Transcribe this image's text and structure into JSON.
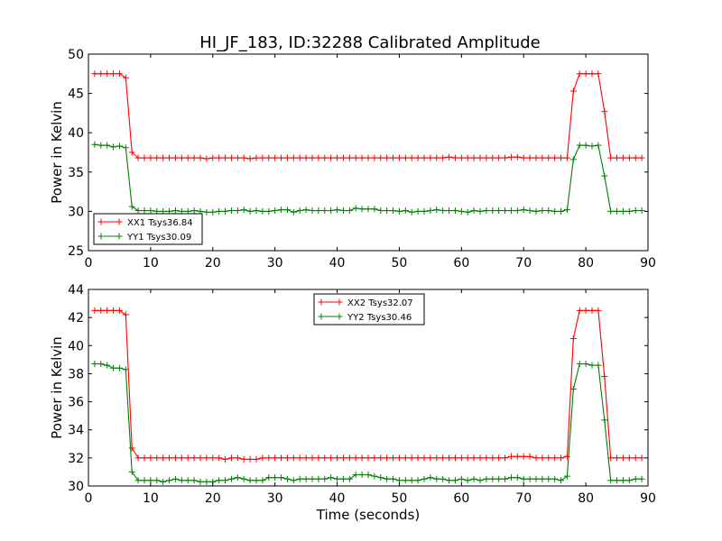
{
  "figure": {
    "title": "HI_JF_183, ID:32288 Calibrated Amplitude"
  },
  "chart_data": [
    {
      "type": "line",
      "title": "HI_JF_183, ID:32288 Calibrated Amplitude",
      "xlabel": "",
      "ylabel": "Power in Kelvin",
      "xlim": [
        0,
        90
      ],
      "ylim": [
        25,
        50
      ],
      "xticks": [
        0,
        10,
        20,
        30,
        40,
        50,
        60,
        70,
        80,
        90
      ],
      "yticks": [
        25,
        30,
        35,
        40,
        45,
        50
      ],
      "grid": false,
      "legend": "lower-left",
      "x": [
        1,
        2,
        3,
        4,
        5,
        6,
        7,
        8,
        9,
        10,
        11,
        12,
        13,
        14,
        15,
        16,
        17,
        18,
        19,
        20,
        21,
        22,
        23,
        24,
        25,
        26,
        27,
        28,
        29,
        30,
        31,
        32,
        33,
        34,
        35,
        36,
        37,
        38,
        39,
        40,
        41,
        42,
        43,
        44,
        45,
        46,
        47,
        48,
        49,
        50,
        51,
        52,
        53,
        54,
        55,
        56,
        57,
        58,
        59,
        60,
        61,
        62,
        63,
        64,
        65,
        66,
        67,
        68,
        69,
        70,
        71,
        72,
        73,
        74,
        75,
        76,
        77,
        78,
        79,
        80,
        81,
        82,
        83,
        84,
        85,
        86,
        87,
        88,
        89
      ],
      "series": [
        {
          "name": "XX1 Tsys36.84",
          "color": "#ff0000",
          "values": [
            47.5,
            47.5,
            47.5,
            47.5,
            47.5,
            47.0,
            37.5,
            36.8,
            36.8,
            36.8,
            36.8,
            36.8,
            36.8,
            36.8,
            36.8,
            36.8,
            36.8,
            36.8,
            36.7,
            36.8,
            36.8,
            36.8,
            36.8,
            36.8,
            36.8,
            36.7,
            36.8,
            36.8,
            36.8,
            36.8,
            36.8,
            36.8,
            36.8,
            36.8,
            36.8,
            36.8,
            36.8,
            36.8,
            36.8,
            36.8,
            36.8,
            36.8,
            36.8,
            36.8,
            36.8,
            36.8,
            36.8,
            36.8,
            36.8,
            36.8,
            36.8,
            36.8,
            36.8,
            36.8,
            36.8,
            36.8,
            36.8,
            36.9,
            36.8,
            36.8,
            36.8,
            36.8,
            36.8,
            36.8,
            36.8,
            36.8,
            36.8,
            36.9,
            36.9,
            36.8,
            36.8,
            36.8,
            36.8,
            36.8,
            36.8,
            36.8,
            36.8,
            45.3,
            47.5,
            47.5,
            47.5,
            47.5,
            42.7,
            36.8,
            36.8,
            36.8,
            36.8,
            36.8,
            36.8
          ]
        },
        {
          "name": "YY1 Tsys30.09",
          "color": "#008000",
          "values": [
            38.5,
            38.4,
            38.4,
            38.2,
            38.3,
            38.1,
            30.6,
            30.1,
            30.1,
            30.1,
            30.0,
            30.0,
            30.0,
            30.1,
            30.0,
            30.0,
            30.1,
            30.0,
            29.9,
            29.9,
            30.0,
            30.0,
            30.1,
            30.1,
            30.2,
            30.0,
            30.1,
            30.0,
            30.0,
            30.1,
            30.2,
            30.2,
            29.9,
            30.1,
            30.2,
            30.1,
            30.1,
            30.1,
            30.1,
            30.2,
            30.1,
            30.1,
            30.4,
            30.3,
            30.3,
            30.3,
            30.1,
            30.1,
            30.1,
            30.0,
            30.1,
            29.9,
            30.0,
            30.0,
            30.1,
            30.2,
            30.1,
            30.1,
            30.1,
            30.0,
            29.9,
            30.1,
            30.0,
            30.1,
            30.1,
            30.1,
            30.1,
            30.1,
            30.1,
            30.2,
            30.1,
            30.0,
            30.1,
            30.1,
            30.0,
            30.0,
            30.2,
            36.6,
            38.4,
            38.4,
            38.3,
            38.4,
            34.5,
            30.0,
            30.0,
            30.0,
            30.0,
            30.1,
            30.1
          ]
        }
      ]
    },
    {
      "type": "line",
      "title": "",
      "xlabel": "Time (seconds)",
      "ylabel": "Power in Kelvin",
      "xlim": [
        0,
        90
      ],
      "ylim": [
        30,
        44
      ],
      "xticks": [
        0,
        10,
        20,
        30,
        40,
        50,
        60,
        70,
        80,
        90
      ],
      "yticks": [
        30,
        32,
        34,
        36,
        38,
        40,
        42,
        44
      ],
      "grid": false,
      "legend": "upper-center",
      "x": [
        1,
        2,
        3,
        4,
        5,
        6,
        7,
        8,
        9,
        10,
        11,
        12,
        13,
        14,
        15,
        16,
        17,
        18,
        19,
        20,
        21,
        22,
        23,
        24,
        25,
        26,
        27,
        28,
        29,
        30,
        31,
        32,
        33,
        34,
        35,
        36,
        37,
        38,
        39,
        40,
        41,
        42,
        43,
        44,
        45,
        46,
        47,
        48,
        49,
        50,
        51,
        52,
        53,
        54,
        55,
        56,
        57,
        58,
        59,
        60,
        61,
        62,
        63,
        64,
        65,
        66,
        67,
        68,
        69,
        70,
        71,
        72,
        73,
        74,
        75,
        76,
        77,
        78,
        79,
        80,
        81,
        82,
        83,
        84,
        85,
        86,
        87,
        88,
        89
      ],
      "series": [
        {
          "name": "XX2 Tsys32.07",
          "color": "#ff0000",
          "values": [
            42.5,
            42.5,
            42.5,
            42.5,
            42.5,
            42.2,
            32.7,
            32.0,
            32.0,
            32.0,
            32.0,
            32.0,
            32.0,
            32.0,
            32.0,
            32.0,
            32.0,
            32.0,
            32.0,
            32.0,
            32.0,
            31.9,
            32.0,
            32.0,
            31.9,
            31.9,
            31.9,
            32.0,
            32.0,
            32.0,
            32.0,
            32.0,
            32.0,
            32.0,
            32.0,
            32.0,
            32.0,
            32.0,
            32.0,
            32.0,
            32.0,
            32.0,
            32.0,
            32.0,
            32.0,
            32.0,
            32.0,
            32.0,
            32.0,
            32.0,
            32.0,
            32.0,
            32.0,
            32.0,
            32.0,
            32.0,
            32.0,
            32.0,
            32.0,
            32.0,
            32.0,
            32.0,
            32.0,
            32.0,
            32.0,
            32.0,
            32.0,
            32.1,
            32.1,
            32.1,
            32.1,
            32.0,
            32.0,
            32.0,
            32.0,
            32.0,
            32.1,
            40.5,
            42.5,
            42.5,
            42.5,
            42.5,
            37.8,
            32.0,
            32.0,
            32.0,
            32.0,
            32.0,
            32.0
          ]
        },
        {
          "name": "YY2 Tsys30.46",
          "color": "#008000",
          "values": [
            38.7,
            38.7,
            38.6,
            38.4,
            38.4,
            38.3,
            31.0,
            30.4,
            30.4,
            30.4,
            30.4,
            30.3,
            30.4,
            30.5,
            30.4,
            30.4,
            30.4,
            30.3,
            30.3,
            30.3,
            30.4,
            30.4,
            30.5,
            30.6,
            30.5,
            30.4,
            30.4,
            30.4,
            30.6,
            30.6,
            30.6,
            30.5,
            30.4,
            30.5,
            30.5,
            30.5,
            30.5,
            30.5,
            30.6,
            30.5,
            30.5,
            30.5,
            30.8,
            30.8,
            30.8,
            30.7,
            30.6,
            30.5,
            30.5,
            30.4,
            30.4,
            30.4,
            30.4,
            30.5,
            30.6,
            30.5,
            30.5,
            30.4,
            30.4,
            30.5,
            30.4,
            30.5,
            30.4,
            30.5,
            30.5,
            30.5,
            30.5,
            30.6,
            30.6,
            30.5,
            30.5,
            30.5,
            30.5,
            30.5,
            30.5,
            30.4,
            30.7,
            36.9,
            38.7,
            38.7,
            38.6,
            38.6,
            34.7,
            30.4,
            30.4,
            30.4,
            30.4,
            30.5,
            30.5
          ]
        }
      ]
    }
  ]
}
